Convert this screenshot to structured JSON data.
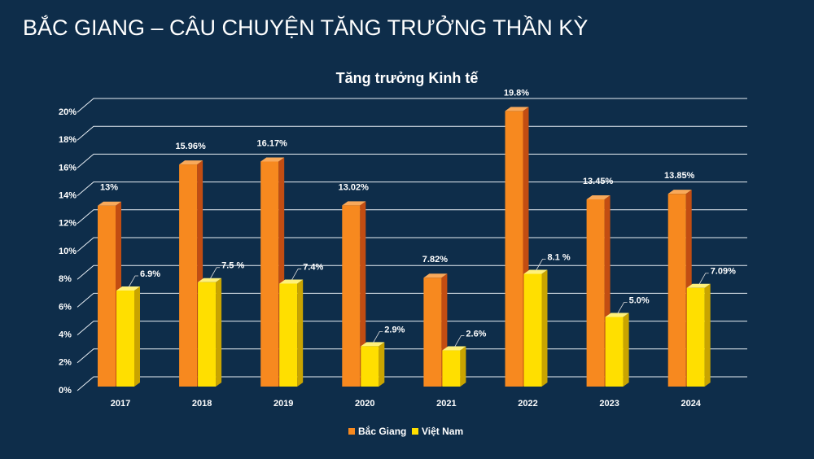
{
  "page_title": "BẮC GIANG – CÂU CHUYỆN TĂNG TRƯỞNG THẦN KỲ",
  "chart_data": {
    "type": "bar3d",
    "title": "Tăng trưởng Kinh tế",
    "categories": [
      "2017",
      "2018",
      "2019",
      "2020",
      "2021",
      "2022",
      "2023",
      "2024"
    ],
    "series": [
      {
        "name": "Bắc Giang",
        "color": "#f7891f",
        "values": [
          13,
          15.96,
          16.17,
          13.02,
          7.82,
          19.8,
          13.45,
          13.85
        ],
        "value_labels": [
          "13%",
          "15.96%",
          "16.17%",
          "13.02%",
          "7.82%",
          "19.8%",
          "13.45%",
          "13.85%"
        ]
      },
      {
        "name": "Việt Nam",
        "color": "#ffdf00",
        "values": [
          6.9,
          7.5,
          7.4,
          2.9,
          2.6,
          8.1,
          5,
          7.09
        ],
        "value_labels": [
          "6.9%",
          "7.5 %",
          "7.4%",
          "2.9%",
          "2.6%",
          "8.1 %",
          "5.0%",
          "7.09%"
        ]
      }
    ],
    "ylim": [
      0,
      20
    ],
    "yticks": [
      {
        "value": 0,
        "label": "0%"
      },
      {
        "value": 2,
        "label": "2%"
      },
      {
        "value": 4,
        "label": "4%"
      },
      {
        "value": 6,
        "label": "6%"
      },
      {
        "value": 8,
        "label": "8%"
      },
      {
        "value": 10,
        "label": "10%"
      },
      {
        "value": 12,
        "label": "12%"
      },
      {
        "value": 14,
        "label": "14%"
      },
      {
        "value": 16,
        "label": "16%"
      },
      {
        "value": 18,
        "label": "18%"
      },
      {
        "value": 20,
        "label": "20%"
      }
    ],
    "grid": true,
    "legend": "bottom"
  }
}
